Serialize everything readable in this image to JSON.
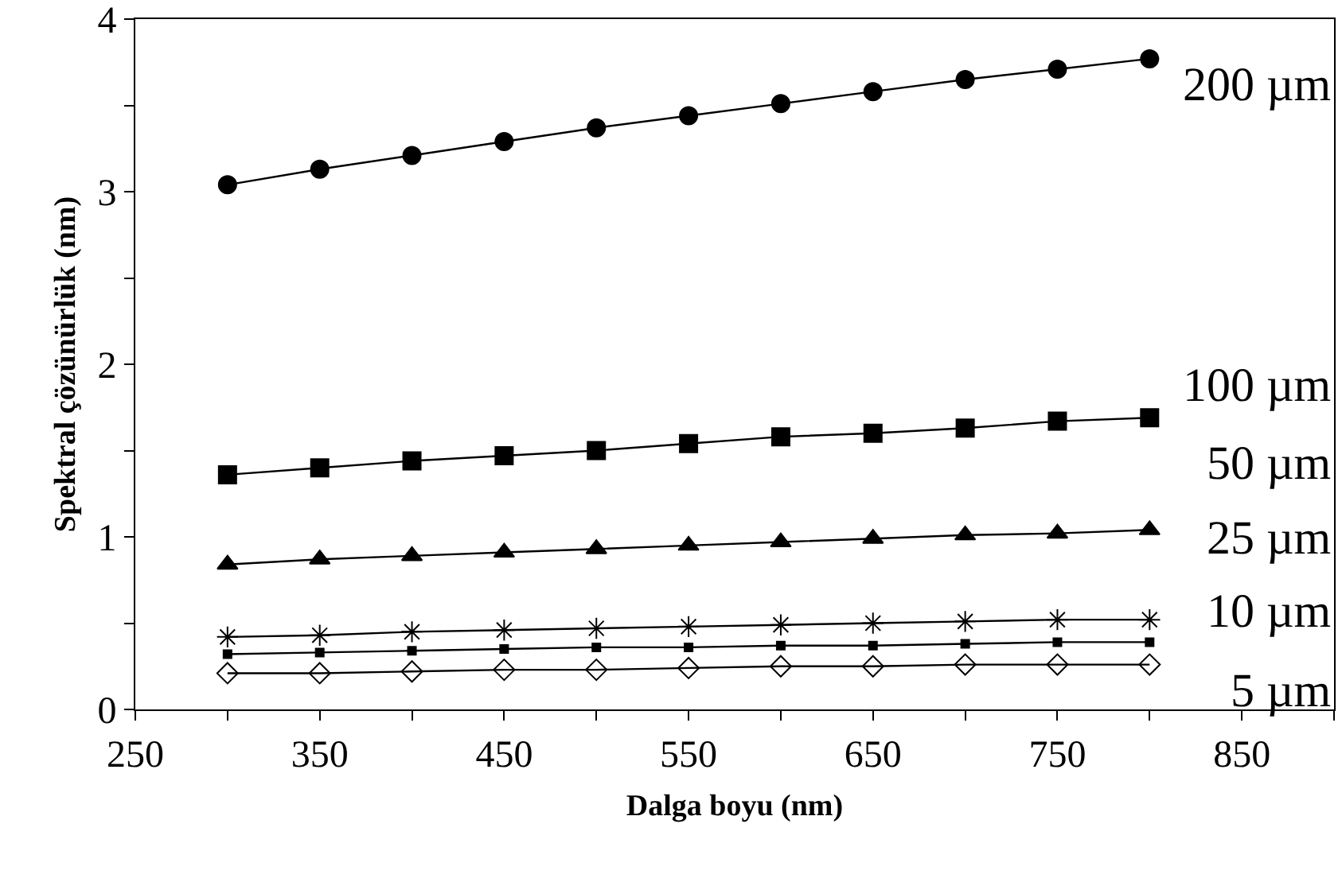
{
  "chart_data": {
    "type": "line",
    "xlabel": "Dalga boyu (nm)",
    "ylabel": "Spektral çözünürlük (nm)",
    "x": [
      300,
      350,
      400,
      450,
      500,
      550,
      600,
      650,
      700,
      750,
      800
    ],
    "xlim": [
      250,
      900
    ],
    "xticks": [
      250,
      {
        "value": 300,
        "label": null
      },
      350,
      {
        "value": 400,
        "label": null
      },
      450,
      {
        "value": 500,
        "label": null
      },
      550,
      {
        "value": 600,
        "label": null
      },
      650,
      {
        "value": 700,
        "label": null
      },
      750,
      {
        "value": 800,
        "label": null
      },
      850,
      {
        "value": 900,
        "label": null
      }
    ],
    "ylim": [
      0,
      4
    ],
    "yticks": [
      0,
      {
        "value": 0.5,
        "label": null
      },
      1,
      {
        "value": 1.5,
        "label": null
      },
      2,
      {
        "value": 2.5,
        "label": null
      },
      3,
      {
        "value": 3.5,
        "label": null
      },
      4
    ],
    "grid": false,
    "line_style": "solid",
    "series": [
      {
        "color": "#000000",
        "marker": "circle",
        "values": [
          3.04,
          3.13,
          3.21,
          3.29,
          3.37,
          3.44,
          3.51,
          3.58,
          3.65,
          3.71,
          3.77
        ]
      },
      {
        "color": "#000000",
        "marker": "square",
        "values": [
          1.36,
          1.4,
          1.44,
          1.47,
          1.5,
          1.54,
          1.58,
          1.6,
          1.63,
          1.67,
          1.69
        ]
      },
      {
        "color": "#000000",
        "marker": "triangle",
        "values": [
          0.84,
          0.87,
          0.89,
          0.91,
          0.93,
          0.95,
          0.97,
          0.99,
          1.01,
          1.02,
          1.04
        ]
      },
      {
        "color": "#000000",
        "marker": "cross",
        "values": [
          0.42,
          0.43,
          0.45,
          0.46,
          0.47,
          0.48,
          0.49,
          0.5,
          0.51,
          0.52,
          0.52
        ]
      },
      {
        "color": "#000000",
        "marker": "square",
        "values": [
          0.32,
          0.33,
          0.34,
          0.35,
          0.36,
          0.36,
          0.37,
          0.37,
          0.38,
          0.39,
          0.39
        ]
      },
      {
        "color": "#000000",
        "marker": "diamond",
        "values": [
          0.21,
          0.21,
          0.22,
          0.23,
          0.23,
          0.24,
          0.25,
          0.25,
          0.26,
          0.26,
          0.26
        ]
      }
    ],
    "annotations": [
      "200 µm",
      "100 µm",
      "50 µm",
      "25 µm",
      "10 µm",
      "5 µm"
    ]
  }
}
